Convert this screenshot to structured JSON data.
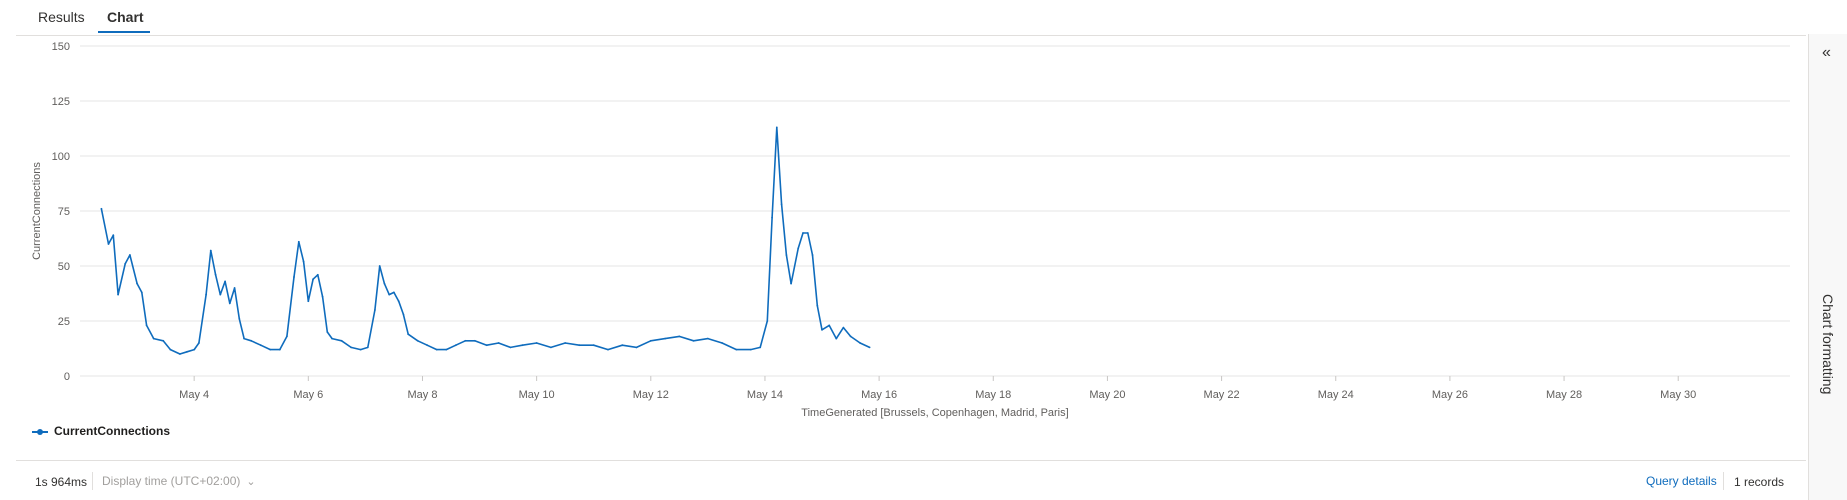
{
  "tabs": [
    {
      "label": "Results",
      "active": false
    },
    {
      "label": "Chart",
      "active": true
    }
  ],
  "chart_data": {
    "type": "line",
    "xlabel": "TimeGenerated [Brussels, Copenhagen, Madrid, Paris]",
    "ylabel": "CurrentConnections",
    "ylim": [
      0,
      150
    ],
    "yticks": [
      0,
      25,
      50,
      75,
      100,
      125,
      150
    ],
    "xlim": [
      "2024-05-02T00:00",
      "2024-05-31T23:00"
    ],
    "xticks": [
      {
        "label": "May 4",
        "x": "2024-05-04"
      },
      {
        "label": "May 6",
        "x": "2024-05-06"
      },
      {
        "label": "May 8",
        "x": "2024-05-08"
      },
      {
        "label": "May 10",
        "x": "2024-05-10"
      },
      {
        "label": "May 12",
        "x": "2024-05-12"
      },
      {
        "label": "May 14",
        "x": "2024-05-14"
      },
      {
        "label": "May 16",
        "x": "2024-05-16"
      },
      {
        "label": "May 18",
        "x": "2024-05-18"
      },
      {
        "label": "May 20",
        "x": "2024-05-20"
      },
      {
        "label": "May 22",
        "x": "2024-05-22"
      },
      {
        "label": "May 24",
        "x": "2024-05-24"
      },
      {
        "label": "May 26",
        "x": "2024-05-26"
      },
      {
        "label": "May 28",
        "x": "2024-05-28"
      },
      {
        "label": "May 30",
        "x": "2024-05-30"
      }
    ],
    "grid": true,
    "legend_position": "bottom-left",
    "color": "#0f6cbd",
    "series": [
      {
        "name": "CurrentConnections",
        "points": [
          [
            "2024-05-02T09:00",
            76
          ],
          [
            "2024-05-02T12:00",
            60
          ],
          [
            "2024-05-02T14:00",
            64
          ],
          [
            "2024-05-02T16:00",
            37
          ],
          [
            "2024-05-02T19:00",
            51
          ],
          [
            "2024-05-02T21:00",
            55
          ],
          [
            "2024-05-03T00:00",
            42
          ],
          [
            "2024-05-03T02:00",
            38
          ],
          [
            "2024-05-03T04:00",
            23
          ],
          [
            "2024-05-03T07:00",
            17
          ],
          [
            "2024-05-03T11:00",
            16
          ],
          [
            "2024-05-03T14:00",
            12
          ],
          [
            "2024-05-03T18:00",
            10
          ],
          [
            "2024-05-03T21:00",
            11
          ],
          [
            "2024-05-04T00:00",
            12
          ],
          [
            "2024-05-04T02:00",
            15
          ],
          [
            "2024-05-04T05:00",
            37
          ],
          [
            "2024-05-04T07:00",
            57
          ],
          [
            "2024-05-04T09:00",
            46
          ],
          [
            "2024-05-04T11:00",
            37
          ],
          [
            "2024-05-04T13:00",
            43
          ],
          [
            "2024-05-04T15:00",
            33
          ],
          [
            "2024-05-04T17:00",
            40
          ],
          [
            "2024-05-04T19:00",
            26
          ],
          [
            "2024-05-04T21:00",
            17
          ],
          [
            "2024-05-05T00:00",
            16
          ],
          [
            "2024-05-05T04:00",
            14
          ],
          [
            "2024-05-05T08:00",
            12
          ],
          [
            "2024-05-05T12:00",
            12
          ],
          [
            "2024-05-05T15:00",
            18
          ],
          [
            "2024-05-05T18:00",
            45
          ],
          [
            "2024-05-05T20:00",
            61
          ],
          [
            "2024-05-05T22:00",
            52
          ],
          [
            "2024-05-06T00:00",
            34
          ],
          [
            "2024-05-06T02:00",
            44
          ],
          [
            "2024-05-06T04:00",
            46
          ],
          [
            "2024-05-06T06:00",
            36
          ],
          [
            "2024-05-06T08:00",
            20
          ],
          [
            "2024-05-06T10:00",
            17
          ],
          [
            "2024-05-06T14:00",
            16
          ],
          [
            "2024-05-06T18:00",
            13
          ],
          [
            "2024-05-06T22:00",
            12
          ],
          [
            "2024-05-07T01:00",
            13
          ],
          [
            "2024-05-07T04:00",
            30
          ],
          [
            "2024-05-07T06:00",
            50
          ],
          [
            "2024-05-07T08:00",
            42
          ],
          [
            "2024-05-07T10:00",
            37
          ],
          [
            "2024-05-07T12:00",
            38
          ],
          [
            "2024-05-07T14:00",
            34
          ],
          [
            "2024-05-07T16:00",
            28
          ],
          [
            "2024-05-07T18:00",
            19
          ],
          [
            "2024-05-07T22:00",
            16
          ],
          [
            "2024-05-08T02:00",
            14
          ],
          [
            "2024-05-08T06:00",
            12
          ],
          [
            "2024-05-08T10:00",
            12
          ],
          [
            "2024-05-08T14:00",
            14
          ],
          [
            "2024-05-08T18:00",
            16
          ],
          [
            "2024-05-08T22:00",
            16
          ],
          [
            "2024-05-09T03:00",
            14
          ],
          [
            "2024-05-09T08:00",
            15
          ],
          [
            "2024-05-09T13:00",
            13
          ],
          [
            "2024-05-09T18:00",
            14
          ],
          [
            "2024-05-10T00:00",
            15
          ],
          [
            "2024-05-10T06:00",
            13
          ],
          [
            "2024-05-10T12:00",
            15
          ],
          [
            "2024-05-10T18:00",
            14
          ],
          [
            "2024-05-11T00:00",
            14
          ],
          [
            "2024-05-11T06:00",
            12
          ],
          [
            "2024-05-11T12:00",
            14
          ],
          [
            "2024-05-11T18:00",
            13
          ],
          [
            "2024-05-12T00:00",
            16
          ],
          [
            "2024-05-12T06:00",
            17
          ],
          [
            "2024-05-12T12:00",
            18
          ],
          [
            "2024-05-12T18:00",
            16
          ],
          [
            "2024-05-13T00:00",
            17
          ],
          [
            "2024-05-13T06:00",
            15
          ],
          [
            "2024-05-13T12:00",
            12
          ],
          [
            "2024-05-13T18:00",
            12
          ],
          [
            "2024-05-13T22:00",
            13
          ],
          [
            "2024-05-14T01:00",
            25
          ],
          [
            "2024-05-14T03:00",
            72
          ],
          [
            "2024-05-14T05:00",
            113
          ],
          [
            "2024-05-14T07:00",
            78
          ],
          [
            "2024-05-14T09:00",
            55
          ],
          [
            "2024-05-14T11:00",
            42
          ],
          [
            "2024-05-14T14:00",
            58
          ],
          [
            "2024-05-14T16:00",
            65
          ],
          [
            "2024-05-14T18:00",
            65
          ],
          [
            "2024-05-14T20:00",
            55
          ],
          [
            "2024-05-14T22:00",
            32
          ],
          [
            "2024-05-15T00:00",
            21
          ],
          [
            "2024-05-15T03:00",
            23
          ],
          [
            "2024-05-15T06:00",
            17
          ],
          [
            "2024-05-15T09:00",
            22
          ],
          [
            "2024-05-15T12:00",
            18
          ],
          [
            "2024-05-15T16:00",
            15
          ],
          [
            "2024-05-15T20:00",
            13
          ]
        ]
      }
    ]
  },
  "footer": {
    "duration": "1s 964ms",
    "display_time": "Display time (UTC+02:00)",
    "query_details": "Query details",
    "records": "1 records"
  },
  "side_panel": {
    "collapse_icon": "double-chevron-left-icon",
    "label": "Chart formatting"
  }
}
